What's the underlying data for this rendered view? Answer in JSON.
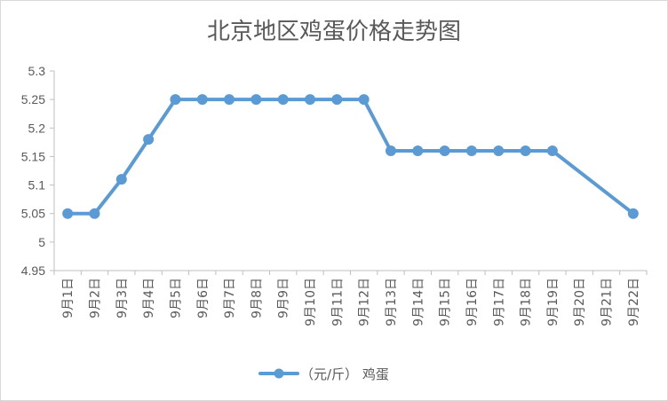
{
  "chart_data": {
    "type": "line",
    "title": "北京地区鸡蛋价格走势图",
    "xlabel": "",
    "ylabel": "",
    "categories": [
      "9月1日",
      "9月2日",
      "9月3日",
      "9月4日",
      "9月5日",
      "9月6日",
      "9月7日",
      "9月8日",
      "9月9日",
      "9月10日",
      "9月11日",
      "9月12日",
      "9月13日",
      "9月14日",
      "9月15日",
      "9月16日",
      "9月17日",
      "9月18日",
      "9月19日",
      "9月20日",
      "9月21日",
      "9月22日"
    ],
    "ylim": [
      4.95,
      5.3
    ],
    "yticks": [
      "5.3",
      "5.25",
      "5.2",
      "5.15",
      "5.1",
      "5.05",
      "5",
      "4.95"
    ],
    "grid": false,
    "legend_position": "bottom",
    "series": [
      {
        "name": "（元/斤） 鸡蛋",
        "color": "#5B9BD5",
        "values": [
          5.05,
          5.05,
          5.11,
          5.18,
          5.25,
          5.25,
          5.25,
          5.25,
          5.25,
          5.25,
          5.25,
          5.25,
          5.16,
          5.16,
          5.16,
          5.16,
          5.16,
          5.16,
          5.16,
          null,
          null,
          5.05
        ]
      }
    ]
  }
}
